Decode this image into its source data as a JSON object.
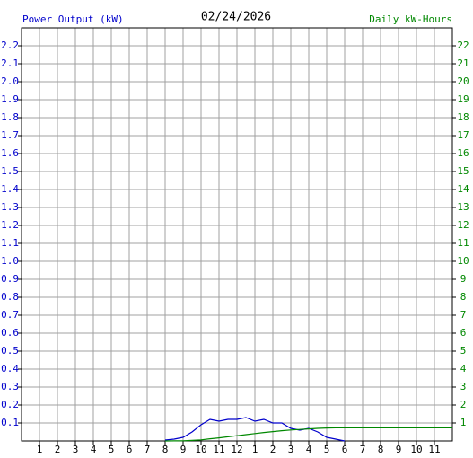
{
  "chart_data": {
    "type": "line",
    "title": "02/24/2026",
    "y_label": "Power Output (kW)",
    "y2_label": "Daily kW-Hours",
    "x": [
      8,
      8.5,
      9,
      9.5,
      10,
      10.5,
      11,
      11.5,
      12,
      12.5,
      13,
      13.5,
      14,
      14.5,
      15,
      15.5,
      16,
      16.5,
      17,
      17.5,
      18,
      18.5,
      19,
      19.5,
      20,
      20.5,
      21,
      21.5,
      22,
      22.5,
      23,
      23.5,
      24
    ],
    "series": [
      {
        "name": "Power Output (kW)",
        "color": "#0000cc",
        "values": [
          0.005,
          0.01,
          0.02,
          0.05,
          0.09,
          0.12,
          0.11,
          0.12,
          0.12,
          0.13,
          0.11,
          0.12,
          0.1,
          0.1,
          0.07,
          0.06,
          0.07,
          0.05,
          0.02,
          0.01,
          0,
          null,
          null,
          null,
          null,
          null,
          null,
          null,
          null,
          null,
          null,
          null,
          null
        ]
      },
      {
        "name": "Daily kW-Hours",
        "color": "#008800",
        "axis": "y2",
        "values": [
          0,
          0.005,
          0.01,
          0.03,
          0.06,
          0.12,
          0.17,
          0.23,
          0.29,
          0.35,
          0.41,
          0.47,
          0.52,
          0.57,
          0.61,
          0.64,
          0.67,
          0.7,
          0.72,
          0.73,
          0.73,
          0.73,
          0.73,
          0.73,
          0.73,
          0.73,
          0.73,
          0.73,
          0.73,
          0.73,
          0.73,
          0.73,
          0.73
        ]
      }
    ],
    "xlim": [
      0,
      24
    ],
    "xticks": [
      1,
      2,
      3,
      4,
      5,
      6,
      7,
      8,
      9,
      10,
      11,
      12,
      {
        "value": 13,
        "label": "1"
      },
      {
        "value": 14,
        "label": "2"
      },
      {
        "value": 15,
        "label": "3"
      },
      {
        "value": 16,
        "label": "4"
      },
      {
        "value": 17,
        "label": "5"
      },
      {
        "value": 18,
        "label": "6"
      },
      {
        "value": 19,
        "label": "7"
      },
      {
        "value": 20,
        "label": "8"
      },
      {
        "value": 21,
        "label": "9"
      },
      {
        "value": 22,
        "label": "10"
      },
      {
        "value": 23,
        "label": "11"
      }
    ],
    "ylim": [
      0,
      2.3
    ],
    "yticks": [
      0.1,
      0.2,
      0.3,
      0.4,
      0.5,
      0.6,
      0.7,
      0.8,
      0.9,
      {
        "value": 1,
        "label": "1.0"
      },
      1.1,
      1.2,
      1.3,
      1.4,
      1.5,
      1.6,
      1.7,
      1.8,
      1.9,
      {
        "value": 2,
        "label": "2.0"
      },
      2.1,
      2.2
    ],
    "y2lim": [
      0,
      23
    ],
    "y2ticks": [
      1,
      2,
      3,
      4,
      5,
      6,
      7,
      8,
      9,
      10,
      11,
      12,
      13,
      14,
      15,
      16,
      17,
      18,
      19,
      20,
      21,
      22
    ],
    "grid": true
  }
}
